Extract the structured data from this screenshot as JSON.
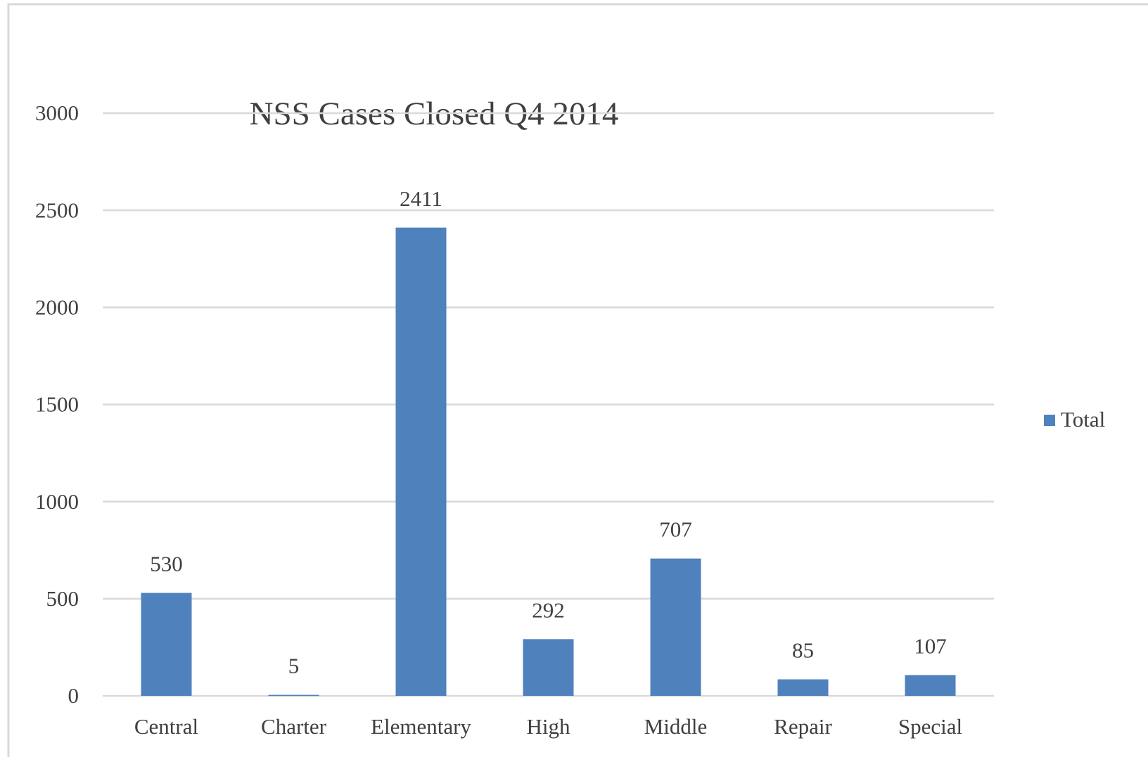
{
  "chart_data": {
    "type": "bar",
    "title": "NSS Cases Closed Q4 2014",
    "categories": [
      "Central",
      "Charter",
      "Elementary",
      "High",
      "Middle",
      "Repair",
      "Special"
    ],
    "series": [
      {
        "name": "Total",
        "color": "#4f81bd",
        "values": [
          530,
          5,
          2411,
          292,
          707,
          85,
          107
        ]
      }
    ],
    "ylim": [
      0,
      3000
    ],
    "yticks": [
      0,
      500,
      1000,
      1500,
      2000,
      2500,
      3000
    ],
    "grid": true,
    "legend": "right"
  }
}
